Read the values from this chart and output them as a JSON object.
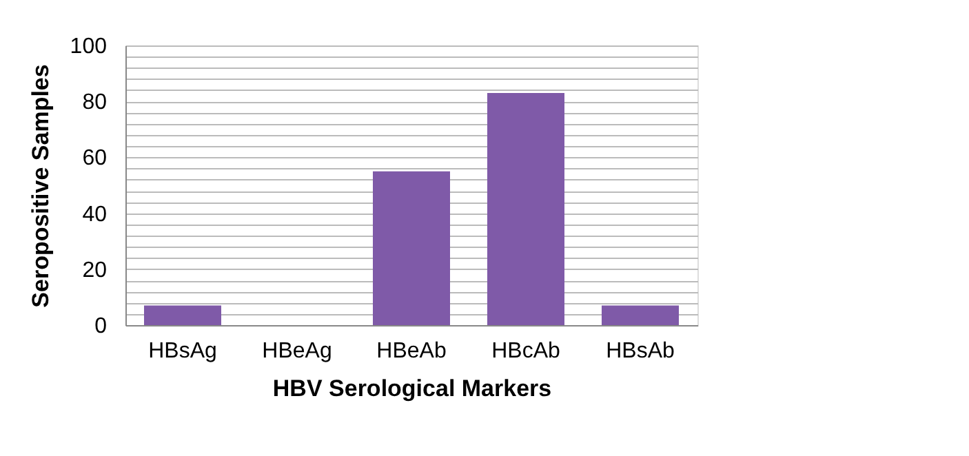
{
  "chart_data": {
    "type": "bar",
    "xlabel": "HBV Serological Markers",
    "ylabel": "Seropositive Samples",
    "categories": [
      "HBsAg",
      "HBeAg",
      "HBeAb",
      "HBcAb",
      "HBsAb"
    ],
    "values": [
      7,
      0,
      55,
      83,
      7
    ],
    "color": "#7f5aa8",
    "ylim": [
      0,
      100
    ],
    "yticks": [
      0,
      {
        "value": 4,
        "label": null
      },
      {
        "value": 8,
        "label": null
      },
      {
        "value": 12,
        "label": null
      },
      {
        "value": 16,
        "label": null
      },
      20,
      {
        "value": 24,
        "label": null
      },
      {
        "value": 28,
        "label": null
      },
      {
        "value": 32,
        "label": null
      },
      {
        "value": 36,
        "label": null
      },
      40,
      {
        "value": 44,
        "label": null
      },
      {
        "value": 48,
        "label": null
      },
      {
        "value": 52,
        "label": null
      },
      {
        "value": 56,
        "label": null
      },
      60,
      {
        "value": 64,
        "label": null
      },
      {
        "value": 68,
        "label": null
      },
      {
        "value": 72,
        "label": null
      },
      {
        "value": 76,
        "label": null
      },
      80,
      {
        "value": 84,
        "label": null
      },
      {
        "value": 88,
        "label": null
      },
      {
        "value": 92,
        "label": null
      },
      {
        "value": 96,
        "label": null
      },
      100
    ],
    "grid": "y"
  }
}
